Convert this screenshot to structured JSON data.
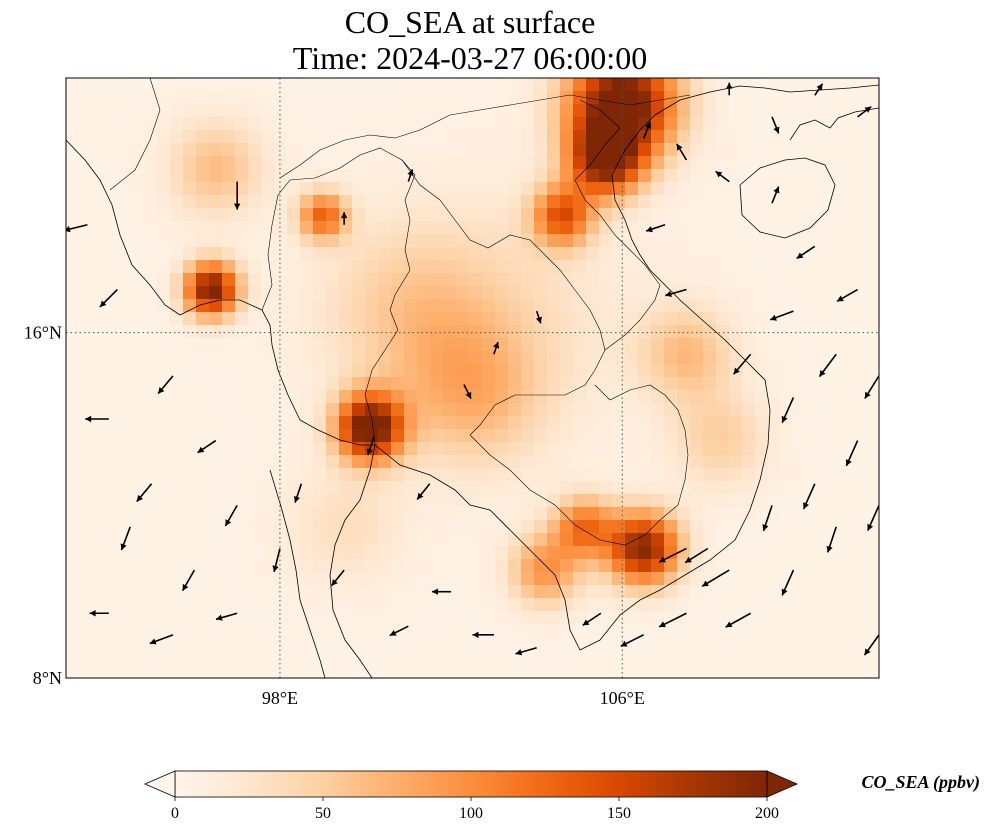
{
  "title": {
    "line1": "CO_SEA at surface",
    "line2": "Time: 2024-03-27 06:00:00"
  },
  "axes": {
    "lon_range": [
      93,
      112
    ],
    "lat_range": [
      8,
      21.9
    ],
    "x_ticks": [
      {
        "value": 98,
        "label": "98°E"
      },
      {
        "value": 106,
        "label": "106°E"
      }
    ],
    "y_ticks": [
      {
        "value": 16,
        "label": "16°N"
      },
      {
        "value": 8,
        "label": "8°N"
      }
    ],
    "grid": "dotted"
  },
  "colorbar": {
    "variable_label": "CO_SEA (ppbv)",
    "min": 0,
    "max": 200,
    "ticks": [
      {
        "value": 0,
        "label": "0"
      },
      {
        "value": 50,
        "label": "50"
      },
      {
        "value": 100,
        "label": "100"
      },
      {
        "value": 150,
        "label": "150"
      },
      {
        "value": 200,
        "label": "200"
      }
    ],
    "extend": "both",
    "colormap": [
      "#fff5eb",
      "#fee6ce",
      "#fdd0a2",
      "#fdae6b",
      "#fd8d3c",
      "#f16913",
      "#d94801",
      "#a63603",
      "#7f2704"
    ]
  },
  "chart_data": {
    "type": "heatmap",
    "quantity": "CO_SEA",
    "units": "ppbv",
    "hotspots": [
      {
        "lon": 106.0,
        "lat": 21.3,
        "value": 220,
        "spread": 0.9
      },
      {
        "lon": 105.6,
        "lat": 20.0,
        "value": 170,
        "spread": 0.6
      },
      {
        "lon": 104.6,
        "lat": 18.7,
        "value": 130,
        "spread": 0.5
      },
      {
        "lon": 96.4,
        "lat": 17.0,
        "value": 200,
        "spread": 0.45
      },
      {
        "lon": 100.1,
        "lat": 13.8,
        "value": 210,
        "spread": 0.55
      },
      {
        "lon": 106.5,
        "lat": 11.0,
        "value": 190,
        "spread": 0.6
      },
      {
        "lon": 105.1,
        "lat": 11.5,
        "value": 110,
        "spread": 0.5
      },
      {
        "lon": 104.2,
        "lat": 10.5,
        "value": 90,
        "spread": 0.6
      },
      {
        "lon": 99.0,
        "lat": 18.7,
        "value": 120,
        "spread": 0.4
      },
      {
        "lon": 96.5,
        "lat": 19.8,
        "value": 60,
        "spread": 0.8
      },
      {
        "lon": 102.5,
        "lat": 14.5,
        "value": 55,
        "spread": 1.2
      },
      {
        "lon": 107.5,
        "lat": 15.5,
        "value": 60,
        "spread": 0.8
      },
      {
        "lon": 108.3,
        "lat": 13.5,
        "value": 45,
        "spread": 0.8
      },
      {
        "lon": 101.0,
        "lat": 16.5,
        "value": 45,
        "spread": 1.5
      },
      {
        "lon": 99.5,
        "lat": 11.5,
        "value": 30,
        "spread": 1.0
      },
      {
        "lon": 103.5,
        "lat": 16.5,
        "value": 25,
        "spread": 2.0
      }
    ],
    "wind_vectors": [
      {
        "lon": 97.0,
        "lat": 19.5,
        "u": 0,
        "v": -1.0
      },
      {
        "lon": 93.5,
        "lat": 18.5,
        "u": -0.8,
        "v": -0.2
      },
      {
        "lon": 94.2,
        "lat": 17.0,
        "u": -0.6,
        "v": -0.6
      },
      {
        "lon": 94.0,
        "lat": 14.0,
        "u": -0.8,
        "v": 0
      },
      {
        "lon": 94.5,
        "lat": 11.5,
        "u": -0.3,
        "v": -0.8
      },
      {
        "lon": 95.0,
        "lat": 12.5,
        "u": -0.5,
        "v": -0.6
      },
      {
        "lon": 95.5,
        "lat": 9.0,
        "u": -0.8,
        "v": -0.3
      },
      {
        "lon": 94.0,
        "lat": 9.5,
        "u": -0.6,
        "v": 0
      },
      {
        "lon": 96.0,
        "lat": 10.5,
        "u": -0.4,
        "v": -0.7
      },
      {
        "lon": 97.0,
        "lat": 12.0,
        "u": -0.4,
        "v": -0.7
      },
      {
        "lon": 96.5,
        "lat": 13.5,
        "u": -0.6,
        "v": -0.4
      },
      {
        "lon": 97.0,
        "lat": 9.5,
        "u": -0.7,
        "v": -0.2
      },
      {
        "lon": 98.0,
        "lat": 11.0,
        "u": -0.2,
        "v": -0.8
      },
      {
        "lon": 95.5,
        "lat": 15.0,
        "u": -0.5,
        "v": -0.6
      },
      {
        "lon": 100.2,
        "lat": 13.6,
        "u": -0.2,
        "v": -0.6
      },
      {
        "lon": 101.5,
        "lat": 12.5,
        "u": -0.4,
        "v": -0.5
      },
      {
        "lon": 102.0,
        "lat": 10.0,
        "u": -0.6,
        "v": 0
      },
      {
        "lon": 101.0,
        "lat": 9.2,
        "u": -0.6,
        "v": -0.3
      },
      {
        "lon": 103.0,
        "lat": 9.0,
        "u": -0.7,
        "v": 0
      },
      {
        "lon": 104.0,
        "lat": 8.7,
        "u": -0.7,
        "v": -0.2
      },
      {
        "lon": 105.5,
        "lat": 9.5,
        "u": -0.6,
        "v": -0.4
      },
      {
        "lon": 106.5,
        "lat": 9.0,
        "u": -0.8,
        "v": -0.4
      },
      {
        "lon": 107.5,
        "lat": 9.5,
        "u": -1.0,
        "v": -0.5
      },
      {
        "lon": 108.5,
        "lat": 10.5,
        "u": -1.0,
        "v": -0.6
      },
      {
        "lon": 107.5,
        "lat": 11.0,
        "u": -1.0,
        "v": -0.5
      },
      {
        "lon": 108.0,
        "lat": 11.0,
        "u": -0.8,
        "v": -0.5
      },
      {
        "lon": 109.0,
        "lat": 9.5,
        "u": -0.9,
        "v": -0.5
      },
      {
        "lon": 110.0,
        "lat": 10.5,
        "u": -0.4,
        "v": -0.9
      },
      {
        "lon": 111.0,
        "lat": 11.5,
        "u": -0.3,
        "v": -0.9
      },
      {
        "lon": 110.5,
        "lat": 12.5,
        "u": -0.4,
        "v": -0.9
      },
      {
        "lon": 111.5,
        "lat": 13.5,
        "u": -0.4,
        "v": -0.9
      },
      {
        "lon": 109.5,
        "lat": 12.0,
        "u": -0.3,
        "v": -0.9
      },
      {
        "lon": 110.0,
        "lat": 14.5,
        "u": -0.4,
        "v": -0.9
      },
      {
        "lon": 111.0,
        "lat": 15.5,
        "u": -0.6,
        "v": -0.8
      },
      {
        "lon": 109.0,
        "lat": 15.5,
        "u": -0.6,
        "v": -0.7
      },
      {
        "lon": 110.0,
        "lat": 16.5,
        "u": -0.8,
        "v": -0.3
      },
      {
        "lon": 111.5,
        "lat": 17.0,
        "u": -0.7,
        "v": -0.4
      },
      {
        "lon": 110.5,
        "lat": 18.0,
        "u": -0.6,
        "v": -0.4
      },
      {
        "lon": 109.5,
        "lat": 19.0,
        "u": 0.2,
        "v": 0.5
      },
      {
        "lon": 108.5,
        "lat": 19.5,
        "u": -0.4,
        "v": 0.3
      },
      {
        "lon": 107.0,
        "lat": 18.5,
        "u": -0.6,
        "v": -0.2
      },
      {
        "lon": 107.5,
        "lat": 17.0,
        "u": -0.7,
        "v": -0.2
      },
      {
        "lon": 106.5,
        "lat": 20.5,
        "u": 0.2,
        "v": 0.5
      },
      {
        "lon": 107.5,
        "lat": 20.0,
        "u": -0.3,
        "v": 0.5
      },
      {
        "lon": 108.5,
        "lat": 21.5,
        "u": 0,
        "v": 0.3
      },
      {
        "lon": 109.5,
        "lat": 21.0,
        "u": 0.2,
        "v": -0.5
      },
      {
        "lon": 110.5,
        "lat": 21.5,
        "u": 0.2,
        "v": 0.3
      },
      {
        "lon": 111.5,
        "lat": 21.0,
        "u": 0.4,
        "v": 0.3
      },
      {
        "lon": 99.5,
        "lat": 18.5,
        "u": 0,
        "v": 0.3
      },
      {
        "lon": 101.0,
        "lat": 19.5,
        "u": 0.1,
        "v": 0.3
      },
      {
        "lon": 104.0,
        "lat": 16.5,
        "u": 0.1,
        "v": -0.3
      },
      {
        "lon": 103.0,
        "lat": 15.5,
        "u": 0.1,
        "v": 0.3
      },
      {
        "lon": 102.3,
        "lat": 14.8,
        "u": 0.2,
        "v": -0.4
      },
      {
        "lon": 98.5,
        "lat": 12.5,
        "u": -0.2,
        "v": -0.6
      },
      {
        "lon": 99.5,
        "lat": 10.5,
        "u": -0.4,
        "v": -0.5
      },
      {
        "lon": 112.0,
        "lat": 15.0,
        "u": -0.5,
        "v": -0.8
      },
      {
        "lon": 112.0,
        "lat": 12.0,
        "u": -0.4,
        "v": -0.9
      },
      {
        "lon": 112.0,
        "lat": 9.0,
        "u": -0.5,
        "v": -0.7
      }
    ]
  }
}
